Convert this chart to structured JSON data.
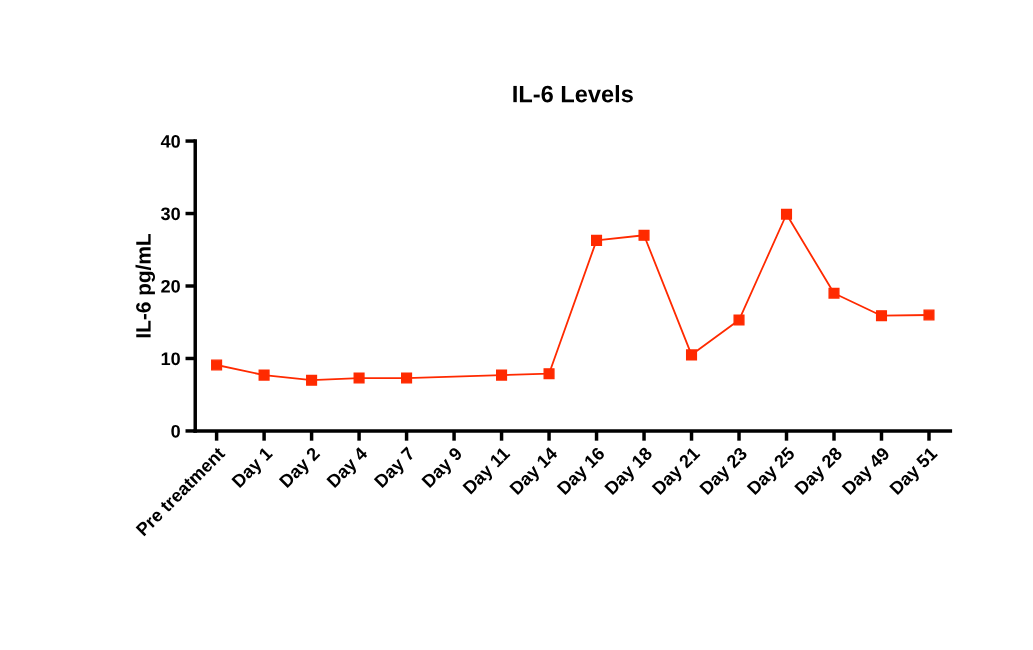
{
  "chart_data": {
    "type": "line",
    "title": "IL-6 Levels",
    "ylabel": "IL-6 pg/mL",
    "categories": [
      "Pre treatment",
      "Day 1",
      "Day 2",
      "Day 4",
      "Day 7",
      "Day 9",
      "Day 11",
      "Day 14",
      "Day 16",
      "Day 18",
      "Day 21",
      "Day 23",
      "Day 25",
      "Day 28",
      "Day 49",
      "Day 51"
    ],
    "series": [
      {
        "color": "#ff2a00",
        "values": [
          9.1,
          7.7,
          7.0,
          7.3,
          7.3,
          null,
          7.7,
          7.9,
          26.3,
          27.0,
          10.5,
          15.3,
          29.9,
          19.0,
          15.9,
          16.0
        ]
      }
    ],
    "ylim": [
      0,
      40
    ],
    "yticks": [
      0,
      10,
      20,
      30,
      40
    ],
    "grid": false,
    "legend": false,
    "marker": "square",
    "line_style": "solid"
  }
}
